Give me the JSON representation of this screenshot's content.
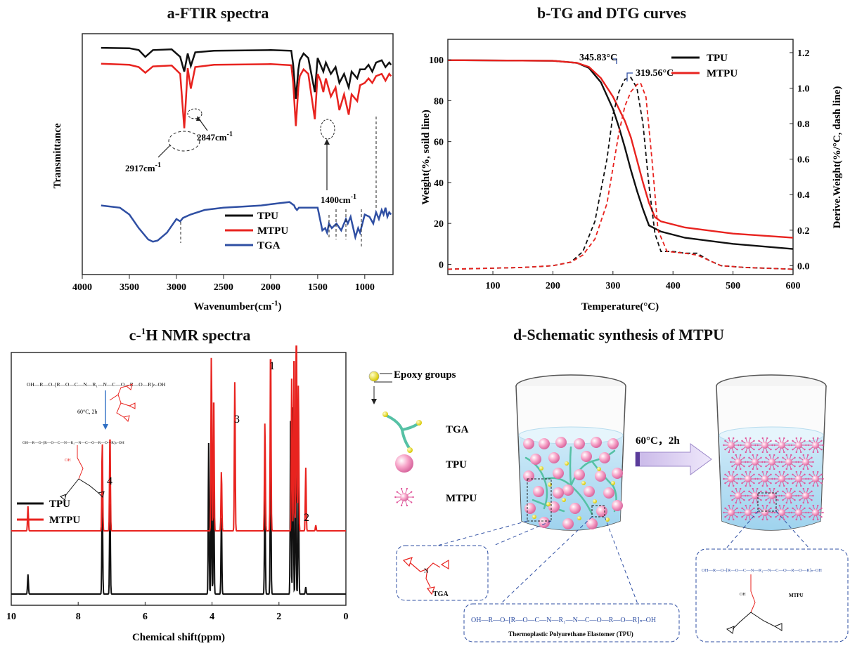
{
  "titles": {
    "a": "a-FTIR spectra",
    "b": "b-TG and DTG curves",
    "c_prefix": "c-",
    "c_sup": "1",
    "c_suffix": "H NMR spectra",
    "d": "d-Schematic synthesis of MTPU"
  },
  "colors": {
    "TPU": "#111111",
    "MTPU": "#e8231f",
    "TGA": "#2f4fa3"
  },
  "chart_data": [
    {
      "type": "line",
      "panel": "a",
      "xlabel": "Wavenumber(cm",
      "xlabel_sup": "-1",
      "xlabel_close": ")",
      "ylabel": "Transmittance",
      "xlim": [
        4000,
        700
      ],
      "x_reversed": true,
      "x_ticks": [
        "4000",
        "3500",
        "3000",
        "2500",
        "2000",
        "1500",
        "1000"
      ],
      "legend": [
        "TPU",
        "MTPU",
        "TGA"
      ],
      "series": [
        {
          "name": "TPU",
          "x": [
            3800,
            3500,
            3400,
            3330,
            3250,
            3050,
            2960,
            2917,
            2880,
            2847,
            2800,
            2600,
            2000,
            1780,
            1760,
            1732,
            1705,
            1690,
            1650,
            1600,
            1530,
            1500,
            1470,
            1440,
            1413,
            1360,
            1310,
            1270,
            1220,
            1170,
            1140,
            1080,
            1050,
            1000,
            960,
            920,
            880,
            820,
            780,
            740,
            720
          ],
          "y": [
            97.5,
            97.3,
            96.5,
            93.5,
            96.5,
            96.8,
            93.5,
            87.0,
            95.0,
            89.5,
            95.5,
            96.2,
            96.5,
            96.2,
            90,
            75,
            88,
            92,
            95,
            93,
            78,
            93,
            90,
            87,
            91,
            86,
            89,
            82,
            86,
            80,
            87,
            84,
            88,
            88,
            90,
            87,
            91,
            92,
            89,
            91,
            90
          ]
        },
        {
          "name": "MTPU",
          "x": [
            3800,
            3500,
            3400,
            3330,
            3250,
            3050,
            2960,
            2917,
            2880,
            2847,
            2800,
            2600,
            2000,
            1780,
            1760,
            1732,
            1705,
            1690,
            1650,
            1600,
            1530,
            1500,
            1470,
            1440,
            1413,
            1360,
            1310,
            1270,
            1220,
            1170,
            1140,
            1080,
            1050,
            1000,
            960,
            920,
            880,
            820,
            780,
            740,
            720
          ],
          "y": [
            90.5,
            90.0,
            89.0,
            86.5,
            89.3,
            89.7,
            86,
            62.0,
            88.5,
            79.5,
            89,
            90,
            90.3,
            89.8,
            82,
            63,
            80,
            85,
            88,
            86,
            66,
            86,
            83,
            78,
            84,
            76,
            80,
            70,
            77,
            68,
            77,
            74,
            81,
            82,
            84,
            82,
            85,
            86,
            83,
            86,
            85
          ]
        },
        {
          "name": "TGA",
          "x": [
            3800,
            3600,
            3500,
            3400,
            3300,
            3250,
            3200,
            3100,
            3000,
            2960,
            2930,
            2850,
            2700,
            2500,
            2300,
            2100,
            2000,
            1900,
            1800,
            1750,
            1740,
            1720,
            1700,
            1650,
            1600,
            1500,
            1480,
            1450,
            1420,
            1400,
            1380,
            1350,
            1300,
            1250,
            1200,
            1180,
            1150,
            1100,
            1070,
            1050,
            1000,
            950,
            910,
            880,
            850,
            820,
            800,
            780,
            760,
            740,
            720
          ],
          "y": [
            28,
            27,
            24,
            18,
            13,
            12,
            12.5,
            16,
            22,
            21,
            22.5,
            24,
            26,
            27,
            27.5,
            28,
            28.5,
            29,
            29.5,
            28,
            27,
            26,
            27,
            27,
            27,
            27,
            23,
            17,
            18,
            16,
            20,
            18,
            20,
            17,
            22,
            20,
            23,
            14,
            18,
            16,
            24,
            23,
            20,
            25,
            22,
            26,
            24,
            27,
            23,
            25,
            24
          ]
        }
      ],
      "annotations": [
        "2917cm",
        "2847cm",
        "1400cm"
      ],
      "annotation_sup": "-1"
    },
    {
      "type": "line",
      "panel": "b",
      "xlabel": "Temperature(°C)",
      "ylabel_left": "Weight(%, soild line)",
      "ylabel_right": "Derive.Weight(%/°C, dash line)",
      "xlim": [
        25,
        600
      ],
      "ylim_left": [
        -5,
        110
      ],
      "ylim_right": [
        -0.05,
        1.275
      ],
      "x_ticks": [
        100,
        200,
        300,
        400,
        500,
        600
      ],
      "y_ticks_left": [
        0,
        20,
        40,
        60,
        80,
        100
      ],
      "y_ticks_right": [
        0.0,
        0.2,
        0.4,
        0.6,
        0.8,
        1.0,
        1.2
      ],
      "legend": [
        "TPU",
        "MTPU"
      ],
      "peak_labels": [
        "345.83°C",
        "319.56°C"
      ],
      "series": [
        {
          "name": "TPU",
          "line": "solid",
          "x": [
            25,
            200,
            240,
            260,
            280,
            300,
            310,
            320,
            330,
            340,
            350,
            360,
            380,
            420,
            500,
            600
          ],
          "y": [
            99.8,
            99.5,
            98.5,
            96,
            89,
            76,
            67,
            57,
            46,
            36,
            27,
            19,
            16,
            13,
            10,
            7.5
          ]
        },
        {
          "name": "MTPU",
          "line": "solid",
          "x": [
            25,
            200,
            240,
            260,
            280,
            300,
            320,
            330,
            340,
            350,
            360,
            370,
            380,
            420,
            500,
            600
          ],
          "y": [
            99.8,
            99.5,
            98.5,
            96.5,
            91,
            82,
            70,
            62,
            51,
            40,
            30,
            23,
            21,
            18,
            15,
            13
          ]
        },
        {
          "name": "TPU",
          "line": "dash",
          "x": [
            25,
            150,
            200,
            230,
            250,
            270,
            290,
            300,
            310,
            320,
            330,
            340,
            350,
            360,
            370,
            380,
            400,
            420,
            440,
            460,
            480,
            520,
            600
          ],
          "y": [
            -0.02,
            -0.01,
            0.0,
            0.02,
            0.08,
            0.25,
            0.6,
            0.85,
            0.98,
            1.05,
            1.06,
            1.0,
            0.8,
            0.45,
            0.18,
            0.08,
            0.08,
            0.07,
            0.07,
            0.03,
            0.0,
            -0.01,
            -0.02
          ]
        },
        {
          "name": "MTPU",
          "line": "dash",
          "x": [
            25,
            150,
            200,
            230,
            250,
            270,
            290,
            300,
            310,
            320,
            330,
            340,
            345.83,
            355,
            365,
            375,
            390,
            420,
            440,
            460,
            480,
            520,
            600
          ],
          "y": [
            -0.02,
            -0.01,
            0.0,
            0.02,
            0.06,
            0.15,
            0.35,
            0.55,
            0.75,
            0.9,
            0.98,
            1.02,
            1.03,
            0.95,
            0.6,
            0.2,
            0.08,
            0.07,
            0.06,
            0.03,
            0.0,
            -0.01,
            -0.02
          ]
        }
      ]
    },
    {
      "type": "line",
      "panel": "c",
      "xlabel": "Chemical shift(ppm)",
      "xlim": [
        10,
        0
      ],
      "x_reversed": true,
      "x_ticks": [
        10,
        8,
        6,
        4,
        2,
        0
      ],
      "legend": [
        "TPU",
        "MTPU"
      ],
      "peak_labels": [
        "1",
        "2",
        "3",
        "4"
      ],
      "series": [
        {
          "name": "TPU",
          "baseline": 0,
          "peaks": [
            [
              9.5,
              28
            ],
            [
              7.28,
              140
            ],
            [
              7.05,
              140
            ],
            [
              4.1,
              215
            ],
            [
              4.02,
              190
            ],
            [
              3.95,
              160
            ],
            [
              3.72,
              110
            ],
            [
              2.42,
              145
            ],
            [
              2.25,
              215
            ],
            [
              1.65,
              270
            ],
            [
              1.58,
              270
            ],
            [
              1.5,
              200
            ],
            [
              1.42,
              180
            ],
            [
              1.2,
              10
            ]
          ]
        },
        {
          "name": "MTPU",
          "baseline": 90,
          "peaks": [
            [
              9.5,
              35
            ],
            [
              7.28,
              125
            ],
            [
              7.05,
              142
            ],
            [
              4.02,
              250
            ],
            [
              3.95,
              200
            ],
            [
              3.72,
              85
            ],
            [
              3.32,
              215
            ],
            [
              2.42,
              155
            ],
            [
              2.25,
              268
            ],
            [
              1.62,
              220
            ],
            [
              1.55,
              265
            ],
            [
              1.48,
              315
            ],
            [
              1.42,
              210
            ],
            [
              1.2,
              90
            ],
            [
              0.9,
              8
            ]
          ]
        }
      ],
      "scheme": {
        "chain": "OH—R—O‒[R—O—C—N—R₁—N—C—O—R—O—R]ₙ‒OH",
        "condition": "60°C, 2h"
      }
    }
  ],
  "schematic": {
    "legend_epoxy": "Epoxy groups",
    "legend_tga": "TGA",
    "legend_tpu": "TPU",
    "legend_mtpu": "MTPU",
    "condition": "60°C，2h",
    "box_tga": "TGA",
    "box_tpu_formula": "OH—R—O‒[R—O—C—N—R₁—N—C—O—R—O—R]ₙ‒OH",
    "box_tpu_name": "Thermoplastic Polyurethane Elastomer (TPU)",
    "box_mtpu_formula": "OH—R—O‒[R—O—C—N—R₁—N—C—O—R—O—R]ₙ‒OH",
    "box_mtpu_name": "MTPU",
    "box_mtpu_oh": "OH"
  }
}
